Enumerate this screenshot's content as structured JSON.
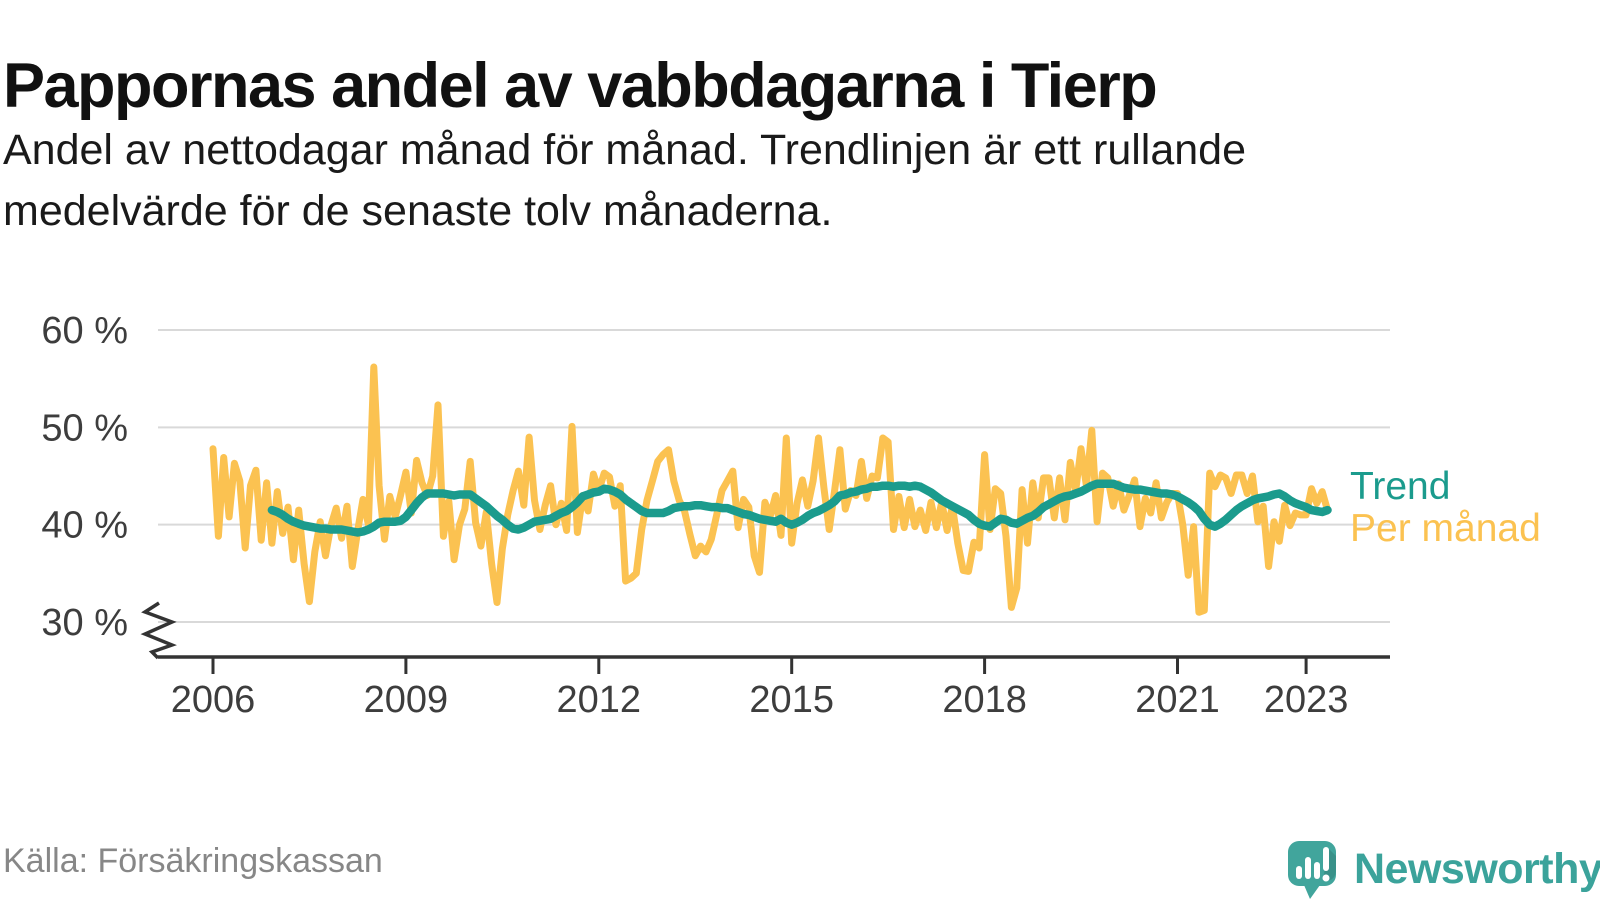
{
  "header": {
    "title": "Pappornas andel av vabbdagarna i Tierp",
    "subtitle_lines": [
      "Andel av nettodagar månad för månad. Trendlinjen är ett rullande",
      "medelvärde för de senaste tolv månaderna."
    ]
  },
  "footer": {
    "source_label": "Källa: Försäkringskassan",
    "brand_name": "Newsworthy",
    "brand_color": "#3ba39b",
    "brand_icon": "speech-bubble-bar-chart"
  },
  "chart_data": {
    "type": "line",
    "title": "Pappornas andel av vabbdagarna i Tierp",
    "xlabel": "",
    "ylabel": "",
    "unit": "%",
    "grid": "horizontal",
    "legend_position": "right",
    "x_axis": {
      "ticks": [
        {
          "value": 2006,
          "label": "2006"
        },
        {
          "value": 2009,
          "label": "2009"
        },
        {
          "value": 2012,
          "label": "2012"
        },
        {
          "value": 2015,
          "label": "2015"
        },
        {
          "value": 2018,
          "label": "2018"
        },
        {
          "value": 2021,
          "label": "2021"
        },
        {
          "value": 2023,
          "label": "2023"
        }
      ]
    },
    "y_axis": {
      "ticks": [
        {
          "value": 60,
          "label": "60 %"
        },
        {
          "value": 50,
          "label": "50 %"
        },
        {
          "value": 40,
          "label": "40 %"
        },
        {
          "value": 30,
          "label": "30 %"
        }
      ],
      "range_displayed": [
        30,
        60
      ],
      "axis_break_below": 30
    },
    "series": [
      {
        "name": "Per månad",
        "color": "#fbc251",
        "stroke_width": 7,
        "start": "2006-01",
        "freq": "monthly",
        "values": [
          47.8,
          38.8,
          46.9,
          40.8,
          46.3,
          44.5,
          37.6,
          44.0,
          45.6,
          38.4,
          44.3,
          38.1,
          43.4,
          39.1,
          41.8,
          36.4,
          41.5,
          36.0,
          32.1,
          37.2,
          40.3,
          36.8,
          39.9,
          41.7,
          38.6,
          41.9,
          35.7,
          39.4,
          42.6,
          40.0,
          56.2,
          44.0,
          38.5,
          42.9,
          40.8,
          43.0,
          45.4,
          41.2,
          46.6,
          44.3,
          43.0,
          45.0,
          52.3,
          38.8,
          42.4,
          36.4,
          40.0,
          41.6,
          46.5,
          40.2,
          37.8,
          41.3,
          36.0,
          32.0,
          37.5,
          41.0,
          43.5,
          45.5,
          42.0,
          49.0,
          42.5,
          39.5,
          42.0,
          44.0,
          40.0,
          42.2,
          39.4,
          50.1,
          39.2,
          43.0,
          41.4,
          45.2,
          43.5,
          45.3,
          44.9,
          41.9,
          44.0,
          34.2,
          34.5,
          35.0,
          39.5,
          42.5,
          44.5,
          46.5,
          47.2,
          47.7,
          44.5,
          42.5,
          41.4,
          39.0,
          36.8,
          37.8,
          37.2,
          38.5,
          41.0,
          43.5,
          44.5,
          45.5,
          39.7,
          42.6,
          41.8,
          36.8,
          35.1,
          42.3,
          40.9,
          43.0,
          38.9,
          48.9,
          38.1,
          42.2,
          44.6,
          41.9,
          44.5,
          48.9,
          43.8,
          39.5,
          43.5,
          47.7,
          41.6,
          43.5,
          43.0,
          46.5,
          42.7,
          45.0,
          44.8,
          48.9,
          48.5,
          39.5,
          42.9,
          39.7,
          42.6,
          39.8,
          41.5,
          39.4,
          42.3,
          39.7,
          42.3,
          39.4,
          41.9,
          38.1,
          35.3,
          35.2,
          38.2,
          37.6,
          47.2,
          39.5,
          43.7,
          43.2,
          38.8,
          31.5,
          33.5,
          43.6,
          38.1,
          44.3,
          40.7,
          44.8,
          44.8,
          40.7,
          44.8,
          40.5,
          46.4,
          43.5,
          47.8,
          44.0,
          49.7,
          40.3,
          45.3,
          44.8,
          41.9,
          44.2,
          41.5,
          43.0,
          44.6,
          39.8,
          42.7,
          41.2,
          44.3,
          40.7,
          42.3,
          43.2,
          43.2,
          39.9,
          34.8,
          39.8,
          31.0,
          31.2,
          45.3,
          43.9,
          45.1,
          44.8,
          43.2,
          45.1,
          45.1,
          43.2,
          45.0,
          40.3,
          41.9,
          35.7,
          40.3,
          38.3,
          42.0,
          39.9,
          41.2,
          41.0,
          41.0,
          43.7,
          42.2,
          43.4,
          41.5
        ]
      },
      {
        "name": "Trend",
        "color": "#1b9b8d",
        "stroke_width": 8.5,
        "start": "2006-12",
        "freq": "monthly",
        "values": [
          41.5,
          41.3,
          41.0,
          40.6,
          40.3,
          40.1,
          39.9,
          39.8,
          39.7,
          39.6,
          39.6,
          39.5,
          39.5,
          39.5,
          39.4,
          39.3,
          39.2,
          39.3,
          39.5,
          39.8,
          40.2,
          40.3,
          40.3,
          40.3,
          40.4,
          40.8,
          41.5,
          42.2,
          42.8,
          43.2,
          43.2,
          43.2,
          43.2,
          43.1,
          43.0,
          43.1,
          43.1,
          43.1,
          42.7,
          42.3,
          41.9,
          41.4,
          40.9,
          40.5,
          40.0,
          39.6,
          39.5,
          39.7,
          40.0,
          40.3,
          40.4,
          40.5,
          40.6,
          40.9,
          41.2,
          41.4,
          41.8,
          42.3,
          42.9,
          43.1,
          43.3,
          43.4,
          43.7,
          43.6,
          43.4,
          43.1,
          42.6,
          42.2,
          41.8,
          41.4,
          41.2,
          41.2,
          41.2,
          41.2,
          41.4,
          41.7,
          41.8,
          41.9,
          41.9,
          42.0,
          42.0,
          41.9,
          41.8,
          41.8,
          41.7,
          41.7,
          41.5,
          41.3,
          41.1,
          41.0,
          40.8,
          40.6,
          40.5,
          40.4,
          40.3,
          40.6,
          40.2,
          40.0,
          40.2,
          40.5,
          40.9,
          41.2,
          41.4,
          41.7,
          42.0,
          42.4,
          43.0,
          43.1,
          43.3,
          43.4,
          43.6,
          43.7,
          43.9,
          43.9,
          44.0,
          44.0,
          43.9,
          44.0,
          44.0,
          43.9,
          44.0,
          43.9,
          43.6,
          43.3,
          42.9,
          42.5,
          42.2,
          41.9,
          41.6,
          41.3,
          41.0,
          40.5,
          40.1,
          39.9,
          39.8,
          40.2,
          40.6,
          40.5,
          40.2,
          40.1,
          40.4,
          40.7,
          40.9,
          41.3,
          41.8,
          42.1,
          42.4,
          42.7,
          42.9,
          43.0,
          43.2,
          43.4,
          43.7,
          44.0,
          44.2,
          44.2,
          44.2,
          44.2,
          44.0,
          43.8,
          43.7,
          43.6,
          43.6,
          43.5,
          43.4,
          43.3,
          43.2,
          43.2,
          43.1,
          42.9,
          42.6,
          42.3,
          41.9,
          41.4,
          40.6,
          40.0,
          39.8,
          40.1,
          40.5,
          41.0,
          41.5,
          41.9,
          42.2,
          42.5,
          42.7,
          42.8,
          42.9,
          43.1,
          43.2,
          42.9,
          42.5,
          42.2,
          42.0,
          41.8,
          41.5,
          41.4,
          41.3,
          41.5
        ]
      }
    ]
  }
}
